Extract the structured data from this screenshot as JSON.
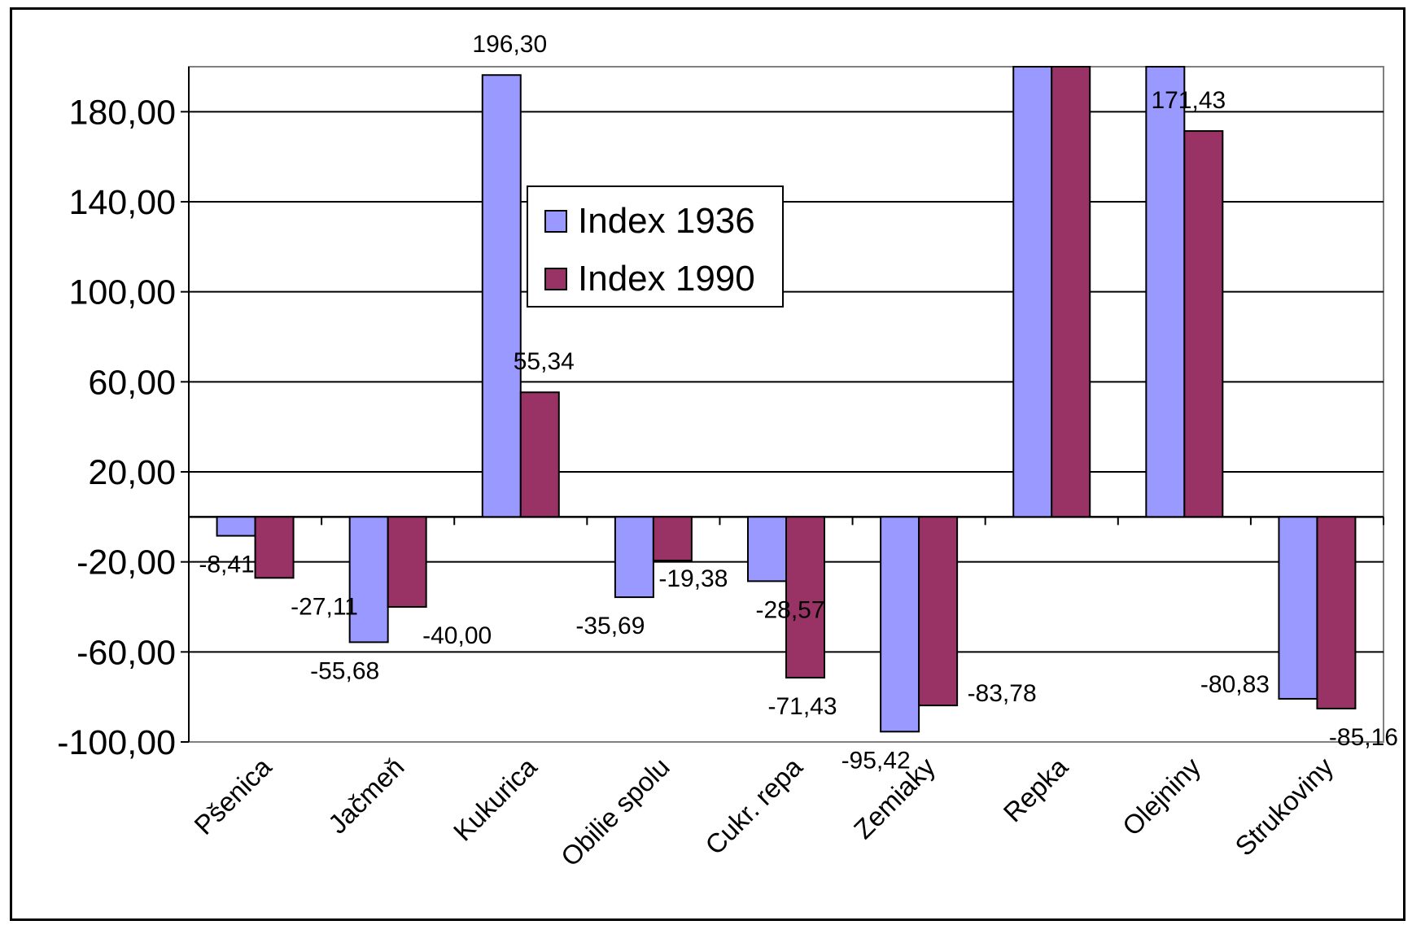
{
  "chart_data": {
    "type": "bar",
    "categories": [
      "Pšenica",
      "Jačmeň",
      "Kukurica",
      "Obilie spolu",
      "Cukr. repa",
      "Zemiaky",
      "Repka",
      "Olejniny",
      "Strukoviny"
    ],
    "series": [
      {
        "name": "Index 1936",
        "color": "#9999ff",
        "values": [
          -8.41,
          -55.68,
          196.3,
          -35.69,
          -28.57,
          -95.42,
          204,
          204,
          -80.83
        ],
        "labels": [
          "-8,41",
          "-55,68",
          "196,30",
          "-35,69",
          "-28,57",
          "-95,42",
          "",
          "",
          "-80,83"
        ]
      },
      {
        "name": "Index 1990",
        "color": "#993366",
        "values": [
          -27.11,
          -40.0,
          55.34,
          -19.38,
          -71.43,
          -83.78,
          204,
          171.43,
          -85.16
        ],
        "labels": [
          "-27,11",
          "-40,00",
          "55,34",
          "-19,38",
          "-71,43",
          "-83,78",
          "",
          "171,43",
          "-85,16"
        ]
      }
    ],
    "y_ticks": [
      "180,00",
      "140,00",
      "100,00",
      "60,00",
      "20,00",
      "-20,00",
      "-60,00",
      "-100,00"
    ],
    "ylim": [
      -100,
      200
    ],
    "grid": true,
    "legend": "top-center",
    "title": "",
    "xlabel": "",
    "ylabel": ""
  }
}
